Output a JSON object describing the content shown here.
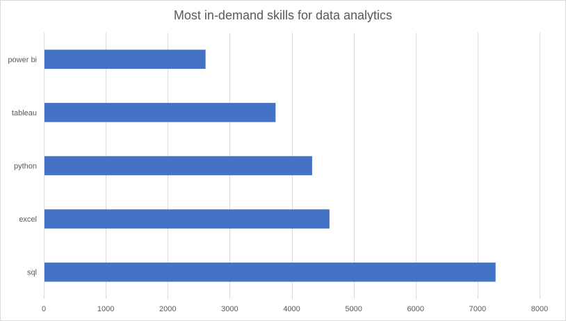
{
  "chart_data": {
    "type": "bar",
    "orientation": "horizontal",
    "title": "Most in-demand skills for data analytics",
    "categories": [
      "power bi",
      "tableau",
      "python",
      "excel",
      "sql"
    ],
    "values": [
      2610,
      3740,
      4330,
      4610,
      7290
    ],
    "xlim": [
      0,
      8000
    ],
    "xticks": [
      0,
      1000,
      2000,
      3000,
      4000,
      5000,
      6000,
      7000,
      8000
    ],
    "grid": true,
    "legend": "none",
    "bar_color": "#4472c4",
    "grid_color": "#d9d9d9",
    "text_color": "#595959"
  }
}
